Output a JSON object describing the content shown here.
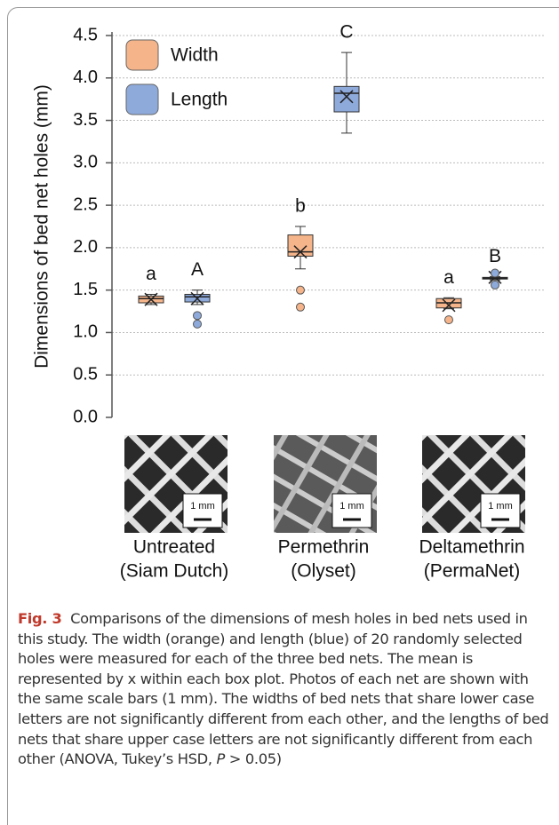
{
  "chart_data": {
    "type": "box",
    "ylabel": "Dimensions of bed net holes (mm)",
    "categories": [
      [
        "Untreated",
        "(Siam Dutch)"
      ],
      [
        "Permethrin",
        "(Olyset)"
      ],
      [
        "Deltamethrin",
        "(PermaNet)"
      ]
    ],
    "ylim": [
      0,
      4.5
    ],
    "yticks": [
      {
        "value": 0,
        "label": "0.0"
      },
      0.5,
      {
        "value": 1,
        "label": "1.0"
      },
      1.5,
      {
        "value": 2,
        "label": "2.0"
      },
      2.5,
      {
        "value": 3,
        "label": "3.0"
      },
      3.5,
      {
        "value": 4,
        "label": "4.0"
      },
      4.5
    ],
    "grid": true,
    "legend": "upper left",
    "series": [
      {
        "name": "Width",
        "color": "#f5b48a",
        "letters": [
          "a",
          "b",
          "a"
        ],
        "values": [
          {
            "whislo": 1.33,
            "q1": 1.35,
            "med": 1.4,
            "q3": 1.43,
            "whishi": 1.45,
            "mean": 1.39,
            "fliers": []
          },
          {
            "whislo": 1.75,
            "q1": 1.9,
            "med": 1.95,
            "q3": 2.15,
            "whishi": 2.25,
            "mean": 1.95,
            "fliers": [
              1.5,
              1.3
            ]
          },
          {
            "whislo": 1.28,
            "q1": 1.29,
            "med": 1.35,
            "q3": 1.4,
            "whishi": 1.41,
            "mean": 1.32,
            "fliers": [
              1.15
            ]
          }
        ]
      },
      {
        "name": "Length",
        "color": "#8eaadb",
        "letters": [
          "A",
          "C",
          "B"
        ],
        "values": [
          {
            "whislo": 1.33,
            "q1": 1.36,
            "med": 1.42,
            "q3": 1.45,
            "whishi": 1.5,
            "mean": 1.4,
            "fliers": [
              1.2,
              1.1
            ]
          },
          {
            "whislo": 3.35,
            "q1": 3.6,
            "med": 3.82,
            "q3": 3.9,
            "whishi": 4.3,
            "mean": 3.78,
            "fliers": []
          },
          {
            "whislo": 1.62,
            "q1": 1.63,
            "med": 1.64,
            "q3": 1.65,
            "whishi": 1.66,
            "mean": 1.65,
            "fliers": [
              1.7,
              1.56
            ]
          }
        ]
      }
    ]
  },
  "photos": [
    {
      "scale": "1 mm"
    },
    {
      "scale": "1 mm"
    },
    {
      "scale": "1 mm"
    }
  ],
  "caption": {
    "label": "Fig. 3",
    "text": "Comparisons of the dimensions of mesh holes in bed nets used in this study. The width (orange) and length (blue) of 20 randomly selected holes were measured for each of the three bed nets. The mean is represented by x within each box plot. Photos of each net are shown with the same scale bars (1 mm). The widths of bed nets that share lower case letters are not significantly different from each other, and the lengths of bed nets that share upper case letters are not significantly different from each other (ANOVA, Tukey’s HSD, ",
    "italic": "P",
    "tail": " > 0.05)"
  }
}
